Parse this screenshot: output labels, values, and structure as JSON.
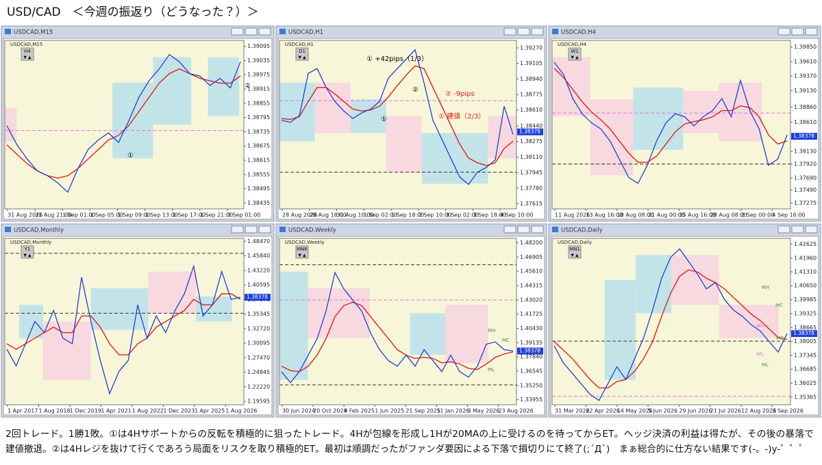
{
  "title": "USD/CAD　＜今週の振返り（どうなった？）＞",
  "panels": [
    {
      "window_title": "USDCAD,M15",
      "chart_label": "USDCAD,M15",
      "tag": "H4",
      "ylim": [
        1.3841,
        1.3912
      ],
      "yticks": [
        1.39095,
        1.39035,
        1.38975,
        1.38915,
        1.38855,
        1.38795,
        1.38735,
        1.38675,
        1.38615,
        1.38555,
        1.38495,
        1.38435
      ],
      "xlabels": [
        "31 Aug 2026",
        "31 Aug 21:00",
        "1 Sep 01:00",
        "1 Sep 05:00",
        "1 Sep 09:00",
        "1 Sep 13:00",
        "1 Sep 17:00",
        "1 Sep 21:00",
        "2 Sep 01:00"
      ],
      "price": {
        "color": "#1f3fd8",
        "values": [
          1.3876,
          1.3868,
          1.3862,
          1.3857,
          1.3855,
          1.3852,
          1.3848,
          1.3858,
          1.3866,
          1.387,
          1.3873,
          1.3869,
          1.3878,
          1.3888,
          1.3895,
          1.39,
          1.3906,
          1.3903,
          1.3898,
          1.3897,
          1.3893,
          1.3896,
          1.3892,
          1.3903
        ]
      },
      "ma": {
        "color": "#e0201c",
        "values": [
          1.3868,
          1.3864,
          1.386,
          1.3857,
          1.3855,
          1.3854,
          1.3855,
          1.3858,
          1.3862,
          1.3866,
          1.387,
          1.3872,
          1.3876,
          1.3882,
          1.3888,
          1.3894,
          1.3898,
          1.39,
          1.3898,
          1.3896,
          1.3895,
          1.3894,
          1.3894,
          1.3897
        ]
      },
      "levels": [
        {
          "value": 1.3874,
          "color": "#e070e0"
        }
      ],
      "annotations": [
        {
          "text": "①",
          "color": "#000000"
        },
        {
          "text": "②",
          "color": "#000000"
        }
      ]
    },
    {
      "window_title": "USDCAD,H1",
      "chart_label": "USDCAD,H1",
      "tag": "D1",
      "ylim": [
        1.3756,
        1.3935
      ],
      "yticks": [
        {
          "value": 1.3927,
          "label": "1.39270"
        },
        1.39105,
        {
          "value": 1.3894,
          "label": "1.38940"
        },
        1.38775,
        {
          "value": 1.3861,
          "label": "1.38610"
        },
        {
          "value": 1.3844,
          "label": "1.38440"
        },
        1.38275,
        {
          "value": 1.3811,
          "label": "1.38110"
        },
        1.37945,
        {
          "value": 1.3778,
          "label": "1.37780"
        },
        1.37615
      ],
      "xlabels": [
        "28 Aug 2026",
        "28 Aug 18:00",
        "31 Aug 10:00",
        "1 Sep 02:00",
        "1 Sep 18:00",
        "2 Sep 10:00",
        "3 Sep 02:00",
        "3 Sep 18:00",
        "4 Sep 10:00"
      ],
      "price": {
        "color": "#1f3fd8",
        "values": [
          1.385,
          1.3848,
          1.3855,
          1.39,
          1.3905,
          1.3885,
          1.387,
          1.386,
          1.3852,
          1.3858,
          1.3862,
          1.387,
          1.3895,
          1.3905,
          1.3915,
          1.3925,
          1.389,
          1.385,
          1.383,
          1.381,
          1.379,
          1.3782,
          1.3795,
          1.38,
          1.3808,
          1.3865,
          1.3835
        ]
      },
      "ma": {
        "color": "#e0201c",
        "values": [
          1.3852,
          1.3851,
          1.3854,
          1.387,
          1.3885,
          1.3885,
          1.3878,
          1.387,
          1.3862,
          1.386,
          1.3861,
          1.3865,
          1.3875,
          1.3887,
          1.3898,
          1.3908,
          1.3905,
          1.3885,
          1.3865,
          1.3845,
          1.3825,
          1.381,
          1.3805,
          1.3802,
          1.3805,
          1.382,
          1.3828
        ]
      },
      "levels": [
        {
          "value": 1.3871,
          "color": "#e070e0"
        },
        {
          "value": 1.3795,
          "color": "#333333"
        }
      ],
      "price_tag": 1.38378,
      "annotations": [
        {
          "text": "① +42pips（1/3）",
          "color": "#000000"
        },
        {
          "text": "②",
          "color": "#000000"
        },
        {
          "text": "② -9pips",
          "color": "#e0201c"
        },
        {
          "text": "① 建値（2/3）",
          "color": "#e0201c"
        },
        {
          "text": "①",
          "color": "#000000"
        }
      ]
    },
    {
      "window_title": "USDCAD,H4",
      "chart_label": "USDCAD,H4",
      "tag": "W1",
      "ylim": [
        1.3718,
        1.3996
      ],
      "yticks": [
        {
          "value": 1.3985,
          "label": "1.39850"
        },
        {
          "value": 1.3961,
          "label": "1.39610"
        },
        {
          "value": 1.3937,
          "label": "1.39370"
        },
        {
          "value": 1.3913,
          "label": "1.39130"
        },
        {
          "value": 1.3886,
          "label": "1.38860"
        },
        {
          "value": 1.3861,
          "label": "1.38610"
        },
        {
          "value": 1.3813,
          "label": "1.38130"
        },
        {
          "value": 1.3792,
          "label": "1.37920"
        },
        {
          "value": 1.3769,
          "label": "1.37690"
        },
        {
          "value": 1.3749,
          "label": "1.37490"
        },
        1.37275
      ],
      "xlabels": [
        "11 Aug 2026",
        "13 Aug 16:00",
        "18 Aug 08:00",
        "21 Aug 00:00",
        "25 Aug 16:00",
        "28 Aug 08:00",
        "2 Sep 00:00",
        "4 Sep 16:00"
      ],
      "price": {
        "color": "#1f3fd8",
        "values": [
          1.396,
          1.394,
          1.39,
          1.3875,
          1.386,
          1.385,
          1.383,
          1.38,
          1.377,
          1.376,
          1.379,
          1.383,
          1.386,
          1.3875,
          1.387,
          1.3855,
          1.387,
          1.388,
          1.39,
          1.387,
          1.393,
          1.388,
          1.385,
          1.379,
          1.38,
          1.384
        ]
      },
      "ma": {
        "color": "#e0201c",
        "values": [
          1.395,
          1.3935,
          1.3915,
          1.3895,
          1.3878,
          1.3865,
          1.385,
          1.383,
          1.381,
          1.3795,
          1.3795,
          1.3805,
          1.3825,
          1.3845,
          1.3858,
          1.3862,
          1.3865,
          1.387,
          1.388,
          1.388,
          1.3888,
          1.3885,
          1.387,
          1.384,
          1.3825,
          1.383
        ]
      },
      "levels": [
        {
          "value": 1.3876,
          "color": "#e070e0"
        },
        {
          "value": 1.3792,
          "color": "#333333"
        }
      ],
      "price_tag": 1.38378,
      "annotations": []
    },
    {
      "window_title": "USDCAD,Monthly",
      "chart_label": "USDCAD,Monthly",
      "tag": "Y1",
      "ylim": [
        1.19,
        1.49
      ],
      "yticks": [
        {
          "value": 1.4847,
          "label": "1.48470"
        },
        {
          "value": 1.4584,
          "label": "1.45840"
        },
        {
          "value": 1.4322,
          "label": "1.43220"
        },
        1.40595,
        {
          "value": 1.3797,
          "label": "1.37970"
        },
        1.35345,
        {
          "value": 1.3272,
          "label": "1.32720"
        },
        1.30095,
        {
          "value": 1.2747,
          "label": "1.27470"
        },
        1.24845,
        {
          "value": 1.2222,
          "label": "1.22220"
        },
        1.19595
      ],
      "xlabels": [
        "1 Apr 2017",
        "1 Aug 2018",
        "1 Dec 2019",
        "1 Apr 2021",
        "1 Aug 2022",
        "1 Dec 2023",
        "1 Apr 2025",
        "1 Aug 2026"
      ],
      "price": {
        "color": "#1f3fd8",
        "values": [
          1.29,
          1.26,
          1.3,
          1.34,
          1.32,
          1.36,
          1.31,
          1.3,
          1.42,
          1.34,
          1.27,
          1.21,
          1.25,
          1.27,
          1.37,
          1.31,
          1.35,
          1.32,
          1.36,
          1.39,
          1.44,
          1.35,
          1.37,
          1.43,
          1.38,
          1.3838
        ]
      },
      "ma": {
        "color": "#e0201c",
        "values": [
          1.3,
          1.29,
          1.3,
          1.31,
          1.32,
          1.33,
          1.32,
          1.32,
          1.35,
          1.35,
          1.33,
          1.3,
          1.28,
          1.28,
          1.3,
          1.31,
          1.33,
          1.34,
          1.35,
          1.36,
          1.38,
          1.37,
          1.37,
          1.39,
          1.39,
          1.38
        ]
      },
      "levels": [
        {
          "value": 1.463,
          "color": "#333333"
        },
        {
          "value": 1.355,
          "color": "#333333"
        }
      ],
      "price_tag": 1.38378,
      "annotations": []
    },
    {
      "window_title": "USDCAD,Weekly",
      "chart_label": "USDCAD,Weekly",
      "tag": "MN6",
      "ylim": [
        1.335,
        1.486
      ],
      "yticks": [
        {
          "value": 1.482,
          "label": "1.48200"
        },
        1.46905,
        {
          "value": 1.4561,
          "label": "1.45610"
        },
        1.44315,
        {
          "value": 1.4302,
          "label": "1.43020"
        },
        1.41725,
        {
          "value": 1.4043,
          "label": "1.40430"
        },
        1.39135,
        {
          "value": 1.3784,
          "label": "1.37840"
        },
        1.36545,
        {
          "value": 1.3525,
          "label": "1.35250"
        },
        1.33955
      ],
      "xlabels": [
        "30 Jun 2024",
        "20 Oct 2024",
        "9 Feb 2025",
        "1 Jun 2025",
        "21 Sep 2025",
        "11 Jan 2026",
        "3 May 2026",
        "23 Aug 2026"
      ],
      "price": {
        "color": "#1f3fd8",
        "values": [
          1.365,
          1.355,
          1.365,
          1.38,
          1.395,
          1.42,
          1.455,
          1.44,
          1.43,
          1.42,
          1.4,
          1.385,
          1.375,
          1.37,
          1.38,
          1.37,
          1.385,
          1.375,
          1.365,
          1.38,
          1.365,
          1.36,
          1.37,
          1.39,
          1.392,
          1.385,
          1.3838
        ]
      },
      "ma": {
        "color": "#e0201c",
        "values": [
          1.37,
          1.366,
          1.365,
          1.37,
          1.38,
          1.395,
          1.415,
          1.425,
          1.428,
          1.425,
          1.415,
          1.405,
          1.395,
          1.385,
          1.38,
          1.377,
          1.378,
          1.377,
          1.373,
          1.374,
          1.372,
          1.368,
          1.367,
          1.372,
          1.378,
          1.381,
          1.383
        ]
      },
      "levels": [
        {
          "value": 1.462,
          "color": "#333333"
        },
        {
          "value": 1.43,
          "color": "#e070e0"
        },
        {
          "value": 1.353,
          "color": "#333333"
        }
      ],
      "price_tag": 1.38378,
      "annotations": [
        {
          "text": "MH",
          "color": "#3a9a3a"
        },
        {
          "text": "MC",
          "color": "#3a9a3a"
        },
        {
          "text": "ML",
          "color": "#3a9a3a"
        }
      ]
    },
    {
      "window_title": "USDCAD,Daily",
      "chart_label": "USDCAD,Daily",
      "tag": "MN1",
      "ylim": [
        1.35,
        1.429
      ],
      "yticks": [
        1.42625,
        {
          "value": 1.4196,
          "label": "1.41960"
        },
        {
          "value": 1.4131,
          "label": "1.41310"
        },
        {
          "value": 1.4065,
          "label": "1.40650"
        },
        1.39985,
        1.39325,
        1.38665,
        1.38005,
        1.37345,
        1.36685,
        1.36025,
        1.35365
      ],
      "xlabels": [
        "31 Mar 2026",
        "22 Apr 2026",
        "14 May 2026",
        "5 Jun 2026",
        "29 Jun 2026",
        "21 Jul 2026",
        "12 Aug 2026",
        "3 Sep 2026"
      ],
      "price": {
        "color": "#1f3fd8",
        "values": [
          1.378,
          1.37,
          1.365,
          1.36,
          1.355,
          1.352,
          1.36,
          1.368,
          1.362,
          1.372,
          1.382,
          1.395,
          1.41,
          1.42,
          1.424,
          1.418,
          1.412,
          1.405,
          1.408,
          1.4,
          1.395,
          1.392,
          1.388,
          1.385,
          1.38,
          1.375,
          1.3838
        ]
      },
      "ma": {
        "color": "#e0201c",
        "values": [
          1.38,
          1.376,
          1.372,
          1.367,
          1.362,
          1.358,
          1.358,
          1.361,
          1.362,
          1.366,
          1.372,
          1.38,
          1.392,
          1.403,
          1.411,
          1.414,
          1.413,
          1.41,
          1.408,
          1.405,
          1.401,
          1.397,
          1.393,
          1.39,
          1.386,
          1.382,
          1.381
        ]
      },
      "levels": [
        {
          "value": 1.354,
          "color": "#e070e0"
        },
        {
          "value": 1.3802,
          "color": "#333333"
        }
      ],
      "price_tag": 1.38378,
      "annotations": [
        {
          "text": "MH",
          "color": "#3a9a3a"
        },
        {
          "text": "MC",
          "color": "#3a9a3a"
        },
        {
          "text": "WH",
          "color": "#e070e0"
        },
        {
          "text": "MC",
          "color": "#3a9a3a"
        },
        {
          "text": "WL",
          "color": "#e070e0"
        },
        {
          "text": "ML",
          "color": "#3a9a3a"
        }
      ]
    }
  ],
  "caption": [
    "2回トレード。1勝1敗。①は4Hサポートからの反転を積極的に狙ったトレード。4Hが包線を形成し1Hが20MAの上に受けるのを待ってからET。ヘッジ決済の利益は得たが、その後の暴落で",
    "建値撤退。②は4Hレジを抜けて行くであろう局面をリスクを取り積極的ET。最初は順調だったがファンダ要因による下落で損切りにて終了(;´Д`)　まぁ総合的に仕方ない結果です(-。-)y-゜゜゜"
  ]
}
